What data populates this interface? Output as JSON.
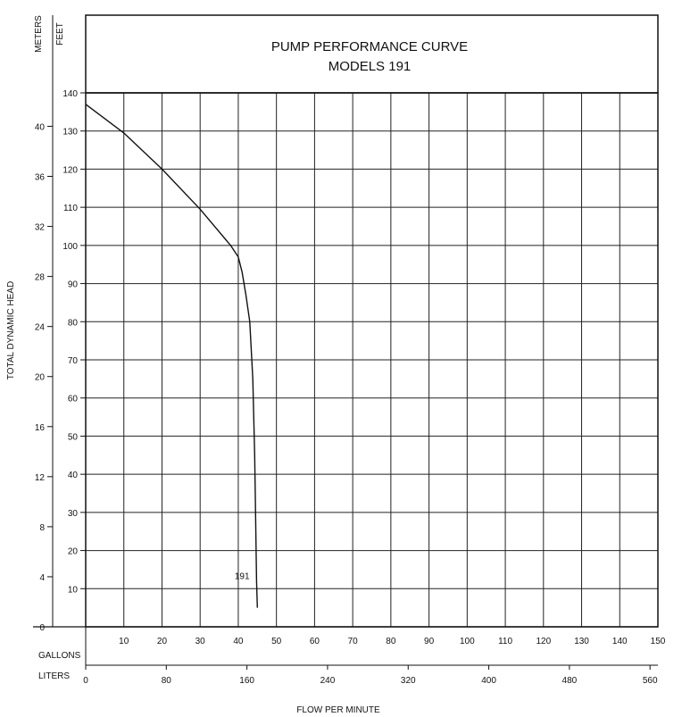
{
  "chart_data": {
    "type": "line",
    "title": "PUMP PERFORMANCE CURVE",
    "subtitle": "MODELS 191",
    "ylabel": "TOTAL DYNAMIC HEAD",
    "xlabel": "FLOW PER MINUTE",
    "y_units_left": "METERS",
    "y_units_right": "FEET",
    "x_units_top": "GALLONS",
    "x_units_bottom": "LITERS",
    "feet_ylim": [
      0,
      140
    ],
    "feet_ticks": [
      10,
      20,
      30,
      40,
      50,
      60,
      70,
      80,
      90,
      100,
      110,
      120,
      130,
      140
    ],
    "meters_ticks": [
      0,
      4,
      8,
      12,
      16,
      20,
      24,
      28,
      32,
      36,
      40
    ],
    "gallons_xlim": [
      0,
      150
    ],
    "gallons_ticks": [
      10,
      20,
      30,
      40,
      50,
      60,
      70,
      80,
      90,
      100,
      110,
      120,
      130,
      140,
      150
    ],
    "liters_ticks": [
      0,
      80,
      160,
      240,
      320,
      400,
      480,
      560
    ],
    "grid": true,
    "series": [
      {
        "name": "191",
        "x": [
          0,
          10,
          20,
          30,
          38,
          40,
          41,
          42,
          43,
          43.8,
          44.3,
          44.6,
          44.8,
          45
        ],
        "y": [
          137,
          129.5,
          120,
          109.5,
          100,
          97,
          93,
          87,
          80,
          65,
          45,
          25,
          12,
          5
        ]
      }
    ],
    "annotations": [
      {
        "text": "191",
        "x": 41,
        "y": 12.5
      }
    ]
  }
}
